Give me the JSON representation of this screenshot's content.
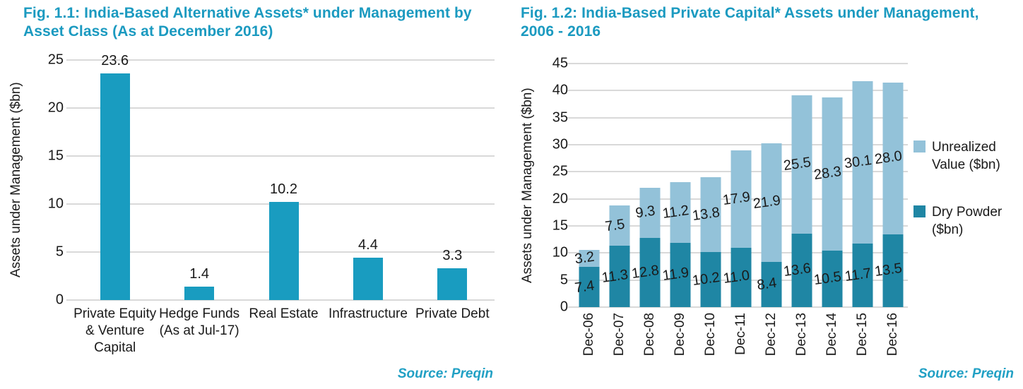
{
  "colors": {
    "title_teal": "#1b9ac0",
    "source_teal": "#21a0c4",
    "bar_cyan": "#199cc0",
    "dry_powder": "#1f86a4",
    "unrealized": "#93c2d9",
    "gridline": "#d9d9d9",
    "text": "#1a1a1a"
  },
  "chart_data": [
    {
      "type": "bar",
      "title": "Fig. 1.1: India-Based Alternative Assets* under Management by Asset Class (As at December 2016)",
      "ylabel": "Assets under Management ($bn)",
      "ylim": [
        0,
        25
      ],
      "ytick_step": 5,
      "grid": "horizontal",
      "categories": [
        "Private Equity\n& Venture\nCapital",
        "Hedge Funds\n(As at Jul-17)",
        "Real Estate",
        "Infrastructure",
        "Private Debt"
      ],
      "values": [
        23.6,
        1.4,
        10.2,
        4.4,
        3.3
      ],
      "bar_color": "#199cc0",
      "source": "Source: Preqin"
    },
    {
      "type": "bar",
      "stacked": true,
      "title": "Fig. 1.2: India-Based Private Capital* Assets under Management, 2006 - 2016",
      "ylabel": "Assets under Management ($bn)",
      "ylim": [
        0,
        45
      ],
      "ytick_step": 5,
      "grid": "horizontal",
      "categories": [
        "Dec-06",
        "Dec-07",
        "Dec-08",
        "Dec-09",
        "Dec-10",
        "Dec-11",
        "Dec-12",
        "Dec-13",
        "Dec-14",
        "Dec-15",
        "Dec-16"
      ],
      "series": [
        {
          "name": "Dry Powder ($bn)",
          "color": "#1f86a4",
          "values": [
            7.4,
            11.3,
            12.8,
            11.9,
            10.2,
            11.0,
            8.4,
            13.6,
            10.5,
            11.7,
            13.5
          ]
        },
        {
          "name": "Unrealized Value ($bn)",
          "color": "#93c2d9",
          "values": [
            3.2,
            7.5,
            9.3,
            11.2,
            13.8,
            17.9,
            21.9,
            25.5,
            28.3,
            30.1,
            28.0
          ]
        }
      ],
      "legend_position": "right",
      "legend": [
        {
          "label": "Unrealized\nValue ($bn)",
          "color": "#93c2d9"
        },
        {
          "label": "Dry Powder\n($bn)",
          "color": "#1f86a4"
        }
      ],
      "source": "Source: Preqin"
    }
  ]
}
